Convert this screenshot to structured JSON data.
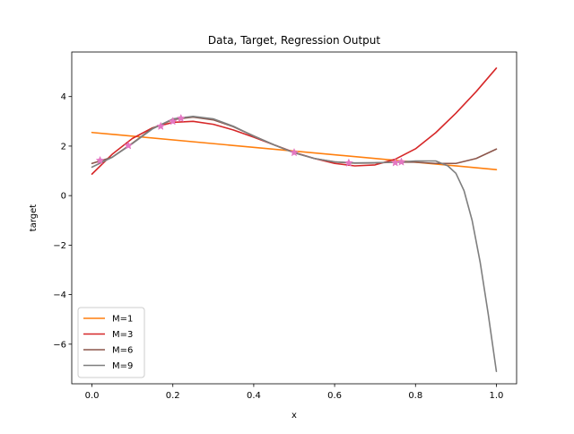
{
  "chart_data": {
    "type": "line",
    "title": "Data, Target, Regression Output",
    "xlabel": "x",
    "ylabel": "target",
    "xlim": [
      -0.05,
      1.05
    ],
    "ylim": [
      -7.6,
      5.8
    ],
    "xticks": [
      0.0,
      0.2,
      0.4,
      0.6,
      0.8,
      1.0
    ],
    "xtick_labels": [
      "0.0",
      "0.2",
      "0.4",
      "0.6",
      "0.8",
      "1.0"
    ],
    "yticks": [
      -6,
      -4,
      -2,
      0,
      2,
      4
    ],
    "ytick_labels": [
      "−6",
      "−4",
      "−2",
      "0",
      "2",
      "4"
    ],
    "grid": false,
    "legend_position": "bottom-left",
    "series": [
      {
        "name": "M=1",
        "color": "#ff7f0e",
        "x": [
          0.0,
          1.0
        ],
        "y": [
          2.55,
          1.05
        ]
      },
      {
        "name": "M=3",
        "color": "#d62728",
        "x": [
          0.0,
          0.05,
          0.1,
          0.15,
          0.2,
          0.25,
          0.3,
          0.35,
          0.4,
          0.45,
          0.5,
          0.55,
          0.6,
          0.65,
          0.7,
          0.75,
          0.8,
          0.85,
          0.9,
          0.95,
          1.0
        ],
        "y": [
          0.87,
          1.67,
          2.31,
          2.74,
          2.96,
          3.0,
          2.88,
          2.65,
          2.36,
          2.05,
          1.75,
          1.5,
          1.3,
          1.2,
          1.24,
          1.47,
          1.89,
          2.54,
          3.33,
          4.2,
          5.15
        ]
      },
      {
        "name": "M=6",
        "color": "#8c564b",
        "x": [
          0.0,
          0.05,
          0.1,
          0.15,
          0.2,
          0.25,
          0.3,
          0.35,
          0.4,
          0.45,
          0.5,
          0.55,
          0.6,
          0.65,
          0.7,
          0.75,
          0.8,
          0.85,
          0.9,
          0.95,
          1.0
        ],
        "y": [
          1.3,
          1.55,
          2.12,
          2.72,
          3.07,
          3.17,
          3.06,
          2.78,
          2.41,
          2.05,
          1.73,
          1.5,
          1.36,
          1.31,
          1.32,
          1.35,
          1.35,
          1.3,
          1.3,
          1.5,
          1.88
        ]
      },
      {
        "name": "M=9",
        "color": "#7f7f7f",
        "x": [
          0.0,
          0.05,
          0.1,
          0.15,
          0.2,
          0.25,
          0.3,
          0.35,
          0.4,
          0.45,
          0.5,
          0.55,
          0.6,
          0.65,
          0.7,
          0.75,
          0.8,
          0.85,
          0.88,
          0.9,
          0.92,
          0.94,
          0.96,
          0.98,
          1.0
        ],
        "y": [
          1.15,
          1.55,
          2.1,
          2.7,
          3.1,
          3.2,
          3.1,
          2.8,
          2.4,
          2.05,
          1.73,
          1.5,
          1.36,
          1.32,
          1.33,
          1.35,
          1.4,
          1.4,
          1.2,
          0.9,
          0.2,
          -1.0,
          -2.7,
          -4.8,
          -7.1
        ]
      }
    ],
    "data_points": {
      "color": "#e377c2",
      "marker": "star",
      "x": [
        0.02,
        0.09,
        0.17,
        0.2,
        0.22,
        0.5,
        0.635,
        0.75,
        0.765
      ],
      "y": [
        1.42,
        2.02,
        2.8,
        3.0,
        3.12,
        1.74,
        1.32,
        1.33,
        1.36
      ]
    }
  }
}
